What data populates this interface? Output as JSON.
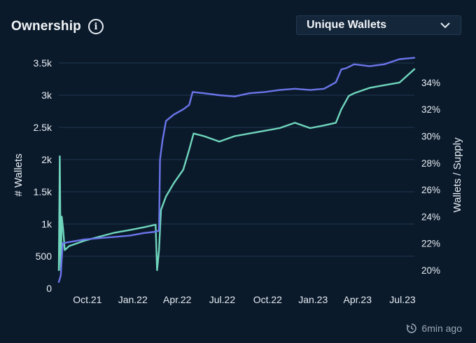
{
  "header": {
    "title": "Ownership",
    "info_icon": "info-icon"
  },
  "dropdown": {
    "selected": "Unique Wallets",
    "icon": "chevron-down-icon"
  },
  "footer": {
    "updated": "6min ago",
    "icon": "clock-refresh-icon"
  },
  "colors": {
    "background": "#0b1a2b",
    "wallets": "#6b75ea",
    "supply": "#6fd6bd",
    "grid": "#1c3550",
    "ticks": "#e6edf3"
  },
  "chart_data": {
    "type": "line",
    "x_ticks": [
      "Oct.21",
      "Jan.22",
      "Apr.22",
      "Jul.22",
      "Oct.22",
      "Jan.23",
      "Apr.23",
      "Jul.23"
    ],
    "x_tick_dates": [
      "2021-10-01",
      "2022-01-01",
      "2022-04-01",
      "2022-07-01",
      "2022-10-01",
      "2023-01-01",
      "2023-04-01",
      "2023-07-01"
    ],
    "x_range": [
      "2021-09-10",
      "2023-08-31"
    ],
    "y_left": {
      "label": "# Wallets",
      "min": 0,
      "max": 3500,
      "ticks": [
        0,
        500,
        1000,
        1500,
        2000,
        2500,
        3000,
        3500
      ],
      "tick_labels": [
        "0",
        "500",
        "1k",
        "1.5k",
        "2k",
        "2.5k",
        "3k",
        "3.5k"
      ],
      "grid": true
    },
    "y_right": {
      "label": "Wallets / Supply",
      "min": 0.2,
      "max": 0.34,
      "ticks": [
        0.2,
        0.22,
        0.24,
        0.26,
        0.28,
        0.3,
        0.32,
        0.34
      ],
      "tick_labels": [
        "20%",
        "22%",
        "24%",
        "26%",
        "28%",
        "30%",
        "32%",
        "34%"
      ]
    },
    "series": [
      {
        "axis": "left",
        "points": [
          [
            "2021-09-10",
            100
          ],
          [
            "2021-09-14",
            200
          ],
          [
            "2021-09-18",
            700
          ],
          [
            "2021-10-01",
            720
          ],
          [
            "2021-11-01",
            760
          ],
          [
            "2021-12-01",
            780
          ],
          [
            "2022-01-01",
            800
          ],
          [
            "2022-02-01",
            820
          ],
          [
            "2022-03-01",
            860
          ],
          [
            "2022-03-25",
            880
          ],
          [
            "2022-04-01",
            900
          ],
          [
            "2022-04-03",
            2000
          ],
          [
            "2022-04-08",
            2300
          ],
          [
            "2022-04-15",
            2600
          ],
          [
            "2022-05-01",
            2700
          ],
          [
            "2022-05-20",
            2780
          ],
          [
            "2022-06-01",
            2850
          ],
          [
            "2022-06-08",
            3050
          ],
          [
            "2022-07-01",
            3030
          ],
          [
            "2022-08-01",
            3000
          ],
          [
            "2022-09-01",
            2980
          ],
          [
            "2022-10-01",
            3030
          ],
          [
            "2022-11-01",
            3050
          ],
          [
            "2022-12-01",
            3080
          ],
          [
            "2023-01-01",
            3100
          ],
          [
            "2023-02-01",
            3080
          ],
          [
            "2023-03-01",
            3100
          ],
          [
            "2023-03-25",
            3200
          ],
          [
            "2023-04-05",
            3400
          ],
          [
            "2023-04-15",
            3420
          ],
          [
            "2023-05-01",
            3480
          ],
          [
            "2023-06-01",
            3450
          ],
          [
            "2023-07-01",
            3480
          ],
          [
            "2023-08-01",
            3560
          ],
          [
            "2023-08-31",
            3580
          ]
        ]
      },
      {
        "axis": "right",
        "points": [
          [
            "2021-09-10",
            0.2
          ],
          [
            "2021-09-12",
            0.285
          ],
          [
            "2021-09-14",
            0.2
          ],
          [
            "2021-09-16",
            0.24
          ],
          [
            "2021-09-19",
            0.23
          ],
          [
            "2021-09-22",
            0.215
          ],
          [
            "2021-10-01",
            0.218
          ],
          [
            "2021-11-01",
            0.222
          ],
          [
            "2021-12-01",
            0.225
          ],
          [
            "2022-01-01",
            0.228
          ],
          [
            "2022-02-01",
            0.23
          ],
          [
            "2022-03-01",
            0.232
          ],
          [
            "2022-03-25",
            0.234
          ],
          [
            "2022-03-28",
            0.2
          ],
          [
            "2022-04-01",
            0.215
          ],
          [
            "2022-04-05",
            0.245
          ],
          [
            "2022-04-15",
            0.255
          ],
          [
            "2022-05-01",
            0.265
          ],
          [
            "2022-05-20",
            0.275
          ],
          [
            "2022-06-01",
            0.29
          ],
          [
            "2022-06-10",
            0.302
          ],
          [
            "2022-07-01",
            0.3
          ],
          [
            "2022-08-01",
            0.296
          ],
          [
            "2022-09-01",
            0.3
          ],
          [
            "2022-10-01",
            0.302
          ],
          [
            "2022-11-01",
            0.304
          ],
          [
            "2022-12-01",
            0.306
          ],
          [
            "2023-01-01",
            0.31
          ],
          [
            "2023-02-01",
            0.306
          ],
          [
            "2023-03-01",
            0.308
          ],
          [
            "2023-03-25",
            0.31
          ],
          [
            "2023-04-05",
            0.32
          ],
          [
            "2023-04-20",
            0.33
          ],
          [
            "2023-05-01",
            0.332
          ],
          [
            "2023-06-01",
            0.336
          ],
          [
            "2023-07-01",
            0.338
          ],
          [
            "2023-08-01",
            0.34
          ],
          [
            "2023-08-31",
            0.35
          ]
        ]
      }
    ]
  }
}
